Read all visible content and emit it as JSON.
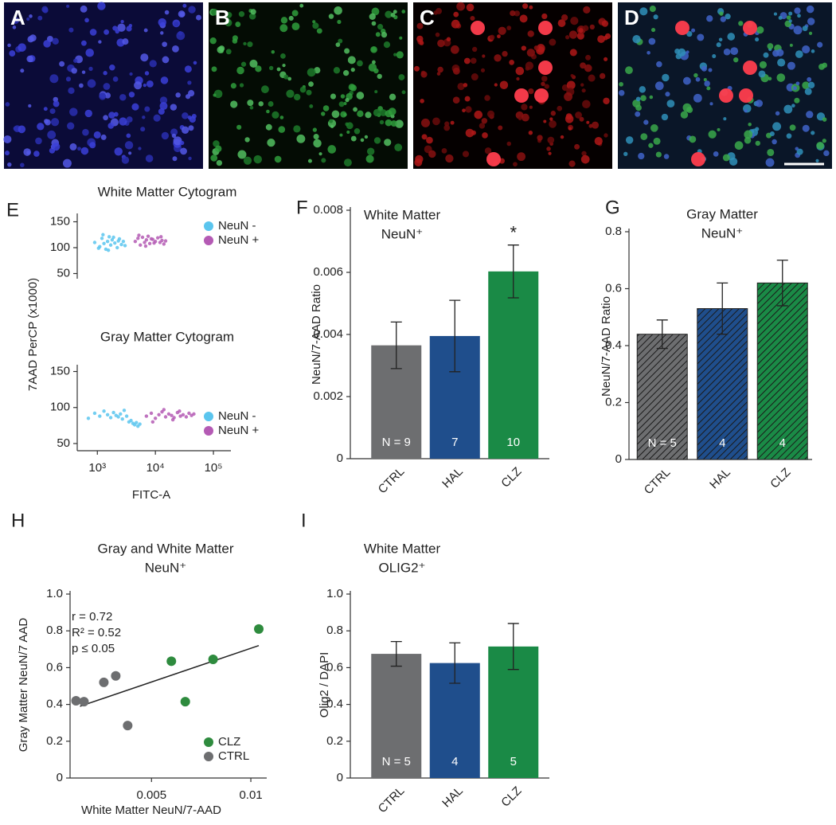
{
  "image_panels": [
    {
      "label": "A"
    },
    {
      "label": "B"
    },
    {
      "label": "C"
    },
    {
      "label": "D"
    }
  ],
  "chart_data": [
    {
      "type": "scatter",
      "panel": "E",
      "title": "White Matter Cytogram",
      "ylabel": "7AAD PerCP (x1000)",
      "xscale": "log",
      "xlim": [
        450,
        200000
      ],
      "ylim": [
        40,
        160
      ],
      "yticks": [
        50,
        100,
        150
      ],
      "legend": "upper right",
      "series": [
        {
          "name": "NeuN -",
          "color": "#5bc5ee",
          "x": [
            900,
            1100,
            1200,
            1300,
            1400,
            1500,
            1600,
            1700,
            1800,
            2000,
            2200,
            2400,
            2600,
            2800,
            3000,
            1250,
            1550,
            1900,
            2300,
            1050
          ],
          "y": [
            110,
            102,
            118,
            108,
            97,
            112,
            121,
            105,
            115,
            109,
            100,
            117,
            106,
            112,
            104,
            125,
            95,
            120,
            113,
            99
          ]
        },
        {
          "name": "NeuN +",
          "color": "#b45ab4",
          "x": [
            4500,
            5000,
            5500,
            6000,
            6500,
            7000,
            7500,
            8000,
            9000,
            10000,
            11000,
            12000,
            13000,
            14000,
            15000,
            5200,
            6800,
            8500,
            9500,
            12500
          ],
          "y": [
            112,
            118,
            105,
            120,
            110,
            115,
            122,
            108,
            116,
            112,
            119,
            110,
            114,
            107,
            113,
            124,
            103,
            117,
            109,
            121
          ]
        }
      ]
    },
    {
      "type": "scatter",
      "title": "Gray Matter Cytogram",
      "xlabel": "FITC-A",
      "xscale": "log",
      "xlim": [
        450,
        200000
      ],
      "ylim": [
        40,
        155
      ],
      "yticks": [
        50,
        100,
        150
      ],
      "xticks": [
        {
          "value": 1000,
          "label": "10³"
        },
        {
          "value": 10000,
          "label": "10⁴"
        },
        {
          "value": 100000,
          "label": "10⁵"
        }
      ],
      "legend": "lower right",
      "series": [
        {
          "name": "NeuN -",
          "color": "#5bc5ee",
          "x": [
            700,
            900,
            1100,
            1300,
            1500,
            1700,
            1900,
            2100,
            2300,
            2500,
            2700,
            2900,
            3200,
            3500,
            3800,
            4100,
            4400,
            4700,
            5000,
            5400
          ],
          "y": [
            85,
            92,
            88,
            95,
            90,
            86,
            93,
            89,
            87,
            91,
            84,
            96,
            88,
            80,
            82,
            78,
            76,
            79,
            74,
            77
          ]
        },
        {
          "name": "NeuN +",
          "color": "#b45ab4",
          "x": [
            7000,
            8500,
            10000,
            11500,
            13000,
            15000,
            17000,
            19000,
            21000,
            24000,
            27000,
            30000,
            34000,
            38000,
            42000,
            46000,
            9000,
            14000,
            20000,
            26000
          ],
          "y": [
            88,
            92,
            85,
            90,
            94,
            87,
            91,
            89,
            86,
            93,
            88,
            90,
            87,
            92,
            89,
            91,
            80,
            97,
            83,
            95
          ]
        }
      ]
    },
    {
      "type": "bar",
      "panel": "F",
      "title": "White Matter",
      "subtitle": "NeuN⁺",
      "ylabel": "NeuN/7-AAD Ratio",
      "categories": [
        "CTRL",
        "HAL",
        "CLZ"
      ],
      "values": [
        0.00365,
        0.00395,
        0.00603
      ],
      "errors": [
        0.00075,
        0.00115,
        0.00085
      ],
      "colors": [
        "#6d6e70",
        "#1f4e8c",
        "#1a8a46"
      ],
      "hatch": false,
      "n_labels": [
        "N = 9",
        "7",
        "10"
      ],
      "significance": [
        null,
        null,
        "*"
      ],
      "ylim": [
        0,
        0.008
      ],
      "yticks": [
        0,
        0.002,
        0.004,
        0.006,
        0.008
      ]
    },
    {
      "type": "bar",
      "panel": "G",
      "title": "Gray Matter",
      "subtitle": "NeuN⁺",
      "ylabel": "NeuN/7-AAD Ratio",
      "categories": [
        "CTRL",
        "HAL",
        "CLZ"
      ],
      "values": [
        0.44,
        0.53,
        0.62
      ],
      "errors": [
        0.05,
        0.09,
        0.08
      ],
      "colors": [
        "#6d6e70",
        "#1f4e8c",
        "#1a8a46"
      ],
      "hatch": true,
      "n_labels": [
        "N = 5",
        "4",
        "4"
      ],
      "ylim": [
        0,
        0.8
      ],
      "yticks": [
        0,
        0.2,
        0.4,
        0.6,
        0.8
      ]
    },
    {
      "type": "scatter",
      "panel": "H",
      "title": "Gray and White Matter",
      "subtitle": "NeuN⁺",
      "xlabel": "White Matter NeuN/7-AAD",
      "ylabel": "Gray Matter NeuN/7 AAD",
      "xlim": [
        0.0009,
        0.0108
      ],
      "ylim": [
        0,
        1
      ],
      "xticks": [
        0.005,
        0.01
      ],
      "yticks": [
        0,
        0.2,
        0.4,
        0.6,
        0.8,
        {
          "value": 1,
          "label": "1.0"
        }
      ],
      "annotations": [
        "r = 0.72",
        "R² = 0.52",
        "p ≤ 0.05"
      ],
      "legend": "lower right",
      "fit_line": {
        "x": [
          0.0014,
          0.0104
        ],
        "y": [
          0.39,
          0.72
        ]
      },
      "series": [
        {
          "name": "CLZ",
          "color": "#2e8b3e",
          "x": [
            0.0104,
            0.006,
            0.0081,
            0.0067
          ],
          "y": [
            0.81,
            0.635,
            0.645,
            0.415
          ]
        },
        {
          "name": "CTRL",
          "color": "#6d6e70",
          "x": [
            0.0012,
            0.0016,
            0.0026,
            0.0032,
            0.0038
          ],
          "y": [
            0.42,
            0.415,
            0.52,
            0.555,
            0.285
          ]
        }
      ]
    },
    {
      "type": "bar",
      "panel": "I",
      "title": "White Matter",
      "subtitle": "OLIG2⁺",
      "ylabel": "Olig2 / DAPI",
      "categories": [
        "CTRL",
        "HAL",
        "CLZ"
      ],
      "values": [
        0.675,
        0.625,
        0.715
      ],
      "errors": [
        0.067,
        0.11,
        0.125
      ],
      "colors": [
        "#6d6e70",
        "#1f4e8c",
        "#1a8a46"
      ],
      "hatch": false,
      "n_labels": [
        "N = 5",
        "4",
        "5"
      ],
      "ylim": [
        0,
        1
      ],
      "yticks": [
        0,
        0.2,
        0.4,
        0.6,
        0.8,
        {
          "value": 1,
          "label": "1.0"
        }
      ]
    }
  ]
}
